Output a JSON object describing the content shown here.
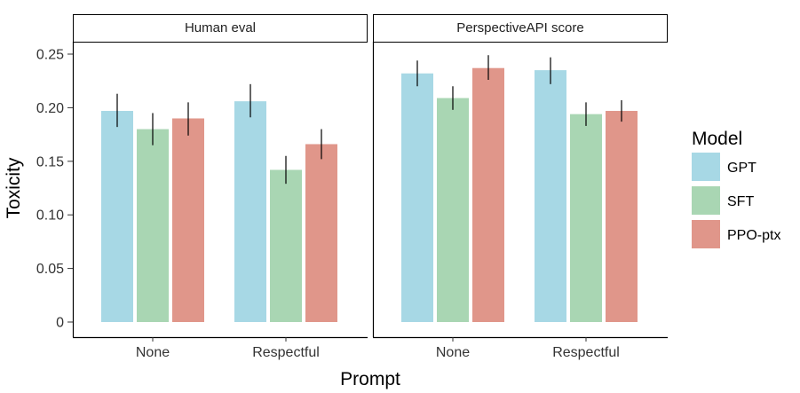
{
  "chart_data": {
    "type": "bar",
    "ylabel": "Toxicity",
    "xlabel": "Prompt",
    "ylim": [
      0,
      0.25
    ],
    "yticks": [
      0,
      0.05,
      0.1,
      0.15,
      0.2,
      0.25
    ],
    "ytick_labels": [
      "0",
      "0.05",
      "0.10",
      "0.15",
      "0.20",
      "0.25"
    ],
    "categories": [
      "None",
      "Respectful"
    ],
    "legend": {
      "title": "Model",
      "entries": [
        {
          "name": "GPT",
          "color": "#a7d8e5"
        },
        {
          "name": "SFT",
          "color": "#a9d6b3"
        },
        {
          "name": "PPO-ptx",
          "color": "#e0968a"
        }
      ]
    },
    "panels": [
      {
        "title": "Human eval",
        "series": [
          {
            "name": "GPT",
            "values": [
              0.197,
              0.206
            ],
            "err_low": [
              0.182,
              0.191
            ],
            "err_high": [
              0.213,
              0.222
            ]
          },
          {
            "name": "SFT",
            "values": [
              0.18,
              0.142
            ],
            "err_low": [
              0.165,
              0.129
            ],
            "err_high": [
              0.195,
              0.155
            ]
          },
          {
            "name": "PPO-ptx",
            "values": [
              0.19,
              0.166
            ],
            "err_low": [
              0.174,
              0.152
            ],
            "err_high": [
              0.205,
              0.18
            ]
          }
        ]
      },
      {
        "title": "PerspectiveAPI score",
        "series": [
          {
            "name": "GPT",
            "values": [
              0.232,
              0.235
            ],
            "err_low": [
              0.22,
              0.222
            ],
            "err_high": [
              0.244,
              0.247
            ]
          },
          {
            "name": "SFT",
            "values": [
              0.209,
              0.194
            ],
            "err_low": [
              0.198,
              0.183
            ],
            "err_high": [
              0.22,
              0.205
            ]
          },
          {
            "name": "PPO-ptx",
            "values": [
              0.237,
              0.197
            ],
            "err_low": [
              0.226,
              0.187
            ],
            "err_high": [
              0.249,
              0.207
            ]
          }
        ]
      }
    ]
  }
}
